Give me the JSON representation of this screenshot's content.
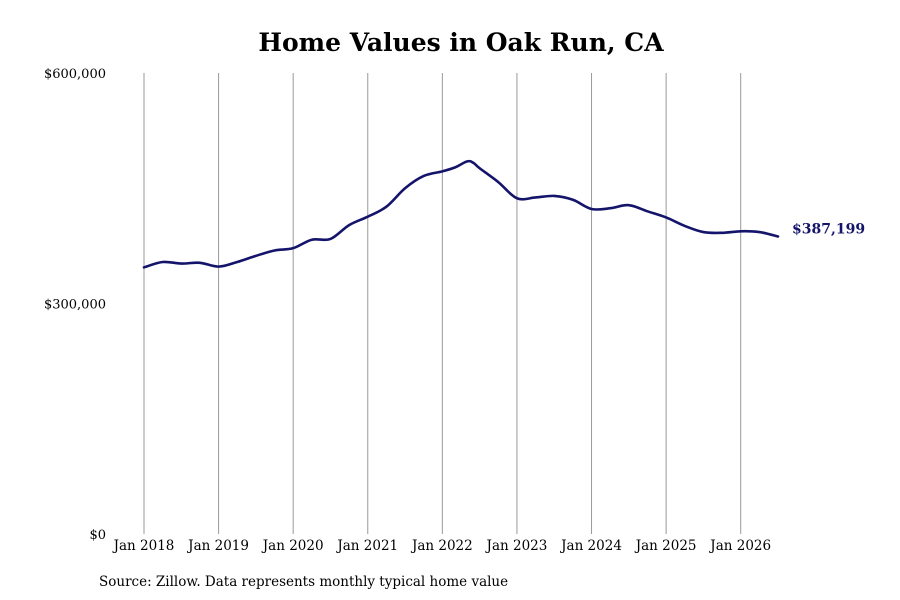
{
  "chart_data": {
    "type": "line",
    "title": "Home Values in Oak Run, CA",
    "source": "Source: Zillow. Data represents monthly typical home value",
    "xlabel": "",
    "ylabel": "",
    "ylim": [
      0,
      600000
    ],
    "yticks": [
      {
        "value": 0,
        "label": "$0"
      },
      {
        "value": 300000,
        "label": "$300,000"
      },
      {
        "value": 600000,
        "label": "$600,000"
      }
    ],
    "xlim": [
      "2018-01",
      "2026-07"
    ],
    "xticks": [
      {
        "value": "2018-01",
        "label": "Jan 2018"
      },
      {
        "value": "2019-01",
        "label": "Jan 2019"
      },
      {
        "value": "2020-01",
        "label": "Jan 2020"
      },
      {
        "value": "2021-01",
        "label": "Jan 2021"
      },
      {
        "value": "2022-01",
        "label": "Jan 2022"
      },
      {
        "value": "2023-01",
        "label": "Jan 2023"
      },
      {
        "value": "2024-01",
        "label": "Jan 2024"
      },
      {
        "value": "2025-01",
        "label": "Jan 2025"
      },
      {
        "value": "2026-01",
        "label": "Jan 2026"
      }
    ],
    "grid": {
      "vertical": true,
      "horizontal": false
    },
    "legend": "none",
    "end_label": "$387,199",
    "colors": {
      "line": "#14146b",
      "grid": "#9a9a9a",
      "text": "#000000"
    },
    "series": [
      {
        "points": [
          [
            "2018-01",
            347000
          ],
          [
            "2018-04",
            354000
          ],
          [
            "2018-07",
            352000
          ],
          [
            "2018-10",
            353000
          ],
          [
            "2019-01",
            348000
          ],
          [
            "2019-04",
            354000
          ],
          [
            "2019-07",
            362000
          ],
          [
            "2019-10",
            369000
          ],
          [
            "2020-01",
            372000
          ],
          [
            "2020-04",
            383000
          ],
          [
            "2020-07",
            384000
          ],
          [
            "2020-10",
            402000
          ],
          [
            "2021-01",
            413000
          ],
          [
            "2021-04",
            426000
          ],
          [
            "2021-07",
            450000
          ],
          [
            "2021-10",
            466000
          ],
          [
            "2022-01",
            472000
          ],
          [
            "2022-03",
            477000
          ],
          [
            "2022-05",
            485000
          ],
          [
            "2022-06",
            483000
          ],
          [
            "2022-07",
            476000
          ],
          [
            "2022-10",
            458000
          ],
          [
            "2023-01",
            437000
          ],
          [
            "2023-04",
            438000
          ],
          [
            "2023-07",
            440000
          ],
          [
            "2023-10",
            435000
          ],
          [
            "2024-01",
            423000
          ],
          [
            "2024-04",
            424000
          ],
          [
            "2024-07",
            428000
          ],
          [
            "2024-10",
            420000
          ],
          [
            "2025-01",
            412000
          ],
          [
            "2025-04",
            401000
          ],
          [
            "2025-07",
            393000
          ],
          [
            "2025-10",
            392000
          ],
          [
            "2026-01",
            394000
          ],
          [
            "2026-04",
            393000
          ],
          [
            "2026-07",
            387199
          ]
        ]
      }
    ]
  }
}
